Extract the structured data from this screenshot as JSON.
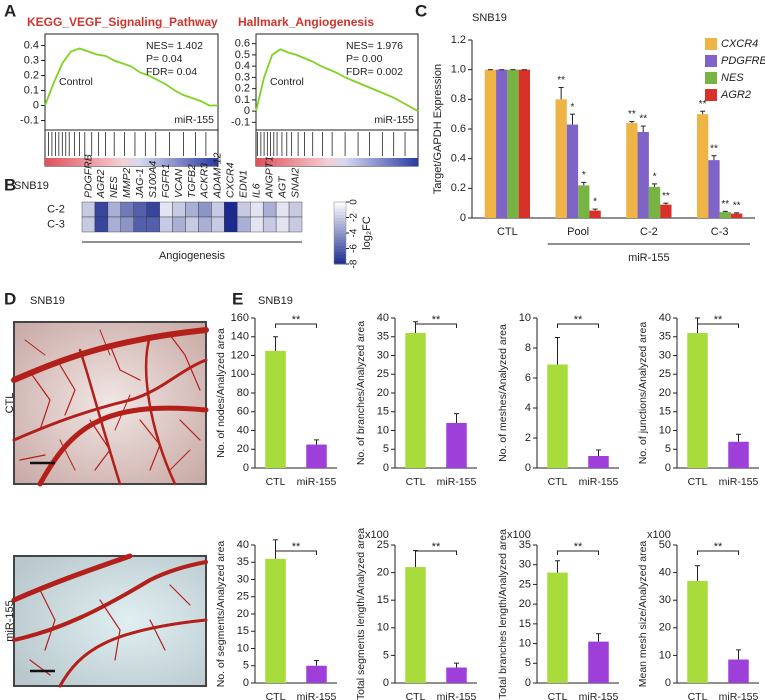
{
  "panel_labels": [
    "A",
    "B",
    "C",
    "D",
    "E"
  ],
  "images": {
    "title": "SNB19",
    "labels": [
      "CTL",
      "miR-155"
    ]
  },
  "chart_data": [
    {
      "type": "gsea",
      "title": "KEGG_VEGF_Signaling_Pathway",
      "annotations": [
        "NES= 1.402",
        "P= 0.04",
        "FDR= 0.04"
      ],
      "labels": [
        "Control",
        "miR-155"
      ],
      "color": "#7ed321",
      "x": [
        0,
        5,
        10,
        15,
        20,
        25,
        30,
        35,
        40,
        45,
        50,
        55,
        60,
        65,
        70,
        75,
        80,
        85,
        90,
        95,
        100
      ],
      "values": [
        0,
        0.15,
        0.28,
        0.36,
        0.38,
        0.36,
        0.34,
        0.33,
        0.3,
        0.28,
        0.26,
        0.22,
        0.2,
        0.17,
        0.14,
        0.1,
        0.07,
        0.05,
        0.03,
        0.0,
        0.0
      ],
      "hits": [
        2,
        4,
        6,
        8,
        10,
        12,
        14,
        17,
        20,
        23,
        27,
        31,
        35,
        40,
        46,
        52,
        58,
        64,
        72,
        80,
        87,
        93
      ],
      "ylim": [
        -0.15,
        0.45
      ],
      "yticks": [
        0.4,
        0.3,
        0.2,
        0.1,
        0,
        -0.1
      ]
    },
    {
      "type": "gsea",
      "title": "Hallmark_Angiogenesis",
      "annotations": [
        "NES= 1.976",
        "P= 0.00",
        "FDR= 0.002"
      ],
      "labels": [
        "Control",
        "miR-155"
      ],
      "color": "#7ed321",
      "x": [
        0,
        5,
        10,
        15,
        20,
        25,
        30,
        35,
        40,
        45,
        50,
        55,
        60,
        65,
        70,
        75,
        80,
        85,
        90,
        95,
        100
      ],
      "values": [
        0,
        0.3,
        0.5,
        0.55,
        0.52,
        0.5,
        0.47,
        0.44,
        0.4,
        0.37,
        0.34,
        0.3,
        0.27,
        0.24,
        0.21,
        0.18,
        0.15,
        0.12,
        0.08,
        0.04,
        0.0
      ],
      "hits": [
        1,
        3,
        5,
        7,
        9,
        11,
        13,
        16,
        19,
        22,
        26,
        30,
        35,
        41,
        47,
        55,
        63,
        70,
        78,
        85,
        92
      ],
      "ylim": [
        -0.15,
        0.65
      ],
      "yticks": [
        0.6,
        0.5,
        0.4,
        0.3,
        0.2,
        0.1,
        0,
        -0.1
      ]
    },
    {
      "type": "heatmap",
      "title": "SNB19",
      "categories": [
        "PDGFRB",
        "AGR2",
        "NES",
        "MMP2",
        "JAG-1",
        "S100A4",
        "FGFR1",
        "VCAN",
        "TGFB2",
        "ACKR3",
        "ADAM-12",
        "CXCR4",
        "EDN1",
        "IL6",
        "ANGPT1",
        "AGT",
        "SNAI2"
      ],
      "rows": [
        "C-2",
        "C-3"
      ],
      "values": [
        [
          -2,
          -7,
          -3,
          -5,
          -6,
          -7,
          -1,
          -2,
          -3,
          -4,
          -2,
          -8,
          -2,
          -1,
          -3,
          -1,
          -2
        ],
        [
          -2,
          -7,
          -3,
          -4,
          -6,
          -6,
          -2,
          -3,
          -2,
          -3,
          -2,
          -8,
          -3,
          -1,
          -2,
          -1,
          -2
        ]
      ],
      "colormap": [
        "#1b2a8f",
        "#ffffff"
      ],
      "zlim": [
        -8,
        0
      ],
      "zticks": [
        -8,
        -6,
        -4,
        -2,
        0
      ],
      "zlabel": "log₂FC",
      "xlabel": "Angiogenesis"
    },
    {
      "type": "bar",
      "title": "SNB19",
      "categories": [
        "CTL",
        "Pool",
        "C-2",
        "C-3"
      ],
      "xlabel": "miR-155",
      "ylabel": "Target/GAPDH Expression",
      "legend": "upper right",
      "ylim": [
        0,
        1.2
      ],
      "yticks": [
        0,
        0.2,
        0.4,
        0.6,
        0.8,
        {
          "value": 1,
          "label": "1.0"
        },
        1.2
      ],
      "series": [
        {
          "name": "CXCR4",
          "color": "#eeb446",
          "values": [
            1.0,
            0.8,
            0.64,
            0.7
          ],
          "errors": [
            0,
            0.08,
            0.01,
            0.02
          ],
          "significance": [
            null,
            "**",
            "**",
            "**"
          ]
        },
        {
          "name": "PDGFRB",
          "color": "#7f63c6",
          "values": [
            1.0,
            0.63,
            0.58,
            0.39
          ],
          "errors": [
            0,
            0.07,
            0.04,
            0.03
          ],
          "significance": [
            null,
            "*",
            "**",
            "**"
          ]
        },
        {
          "name": "NES",
          "color": "#78b443",
          "values": [
            1.0,
            0.22,
            0.21,
            0.04
          ],
          "errors": [
            0,
            0.02,
            0.02,
            0.005
          ],
          "significance": [
            null,
            "*",
            "*",
            "**"
          ]
        },
        {
          "name": "AGR2",
          "color": "#d7312a",
          "values": [
            1.0,
            0.05,
            0.09,
            0.03
          ],
          "errors": [
            0,
            0.01,
            0.01,
            0.005
          ],
          "significance": [
            null,
            "*",
            "**",
            "**"
          ]
        }
      ]
    },
    {
      "type": "bar",
      "title": "SNB19",
      "categories": [
        "CTL",
        "miR-155"
      ],
      "colors": [
        "#a8dc3c",
        "#9d3fd8"
      ],
      "ylabel": "No. of nodes/Analyzed area",
      "values": [
        125,
        25
      ],
      "errors": [
        15,
        5
      ],
      "significance": "**",
      "ylim": [
        0,
        160
      ],
      "yticks": [
        0,
        20,
        40,
        60,
        80,
        100,
        120,
        140,
        160
      ]
    },
    {
      "type": "bar",
      "categories": [
        "CTL",
        "miR-155"
      ],
      "colors": [
        "#a8dc3c",
        "#9d3fd8"
      ],
      "ylabel": "No. of branches/Analyzed area",
      "values": [
        36,
        12
      ],
      "errors": [
        3,
        2.5
      ],
      "significance": "**",
      "ylim": [
        0,
        40
      ],
      "yticks": [
        0,
        5,
        10,
        15,
        20,
        25,
        30,
        35,
        40
      ]
    },
    {
      "type": "bar",
      "categories": [
        "CTL",
        "miR-155"
      ],
      "colors": [
        "#a8dc3c",
        "#9d3fd8"
      ],
      "ylabel": "No. of meshes/Analyzed area",
      "values": [
        6.9,
        0.8
      ],
      "errors": [
        1.8,
        0.4
      ],
      "significance": "**",
      "ylim": [
        0,
        10
      ],
      "yticks": [
        0,
        2,
        4,
        6,
        8,
        10
      ]
    },
    {
      "type": "bar",
      "categories": [
        "CTL",
        "miR-155"
      ],
      "colors": [
        "#a8dc3c",
        "#9d3fd8"
      ],
      "ylabel": "No. of junctions/Analyzed area",
      "values": [
        36,
        7
      ],
      "errors": [
        4,
        2
      ],
      "significance": "**",
      "ylim": [
        0,
        40
      ],
      "yticks": [
        0,
        5,
        10,
        15,
        20,
        25,
        30,
        35,
        40
      ]
    },
    {
      "type": "bar",
      "categories": [
        "CTL",
        "miR-155"
      ],
      "colors": [
        "#a8dc3c",
        "#9d3fd8"
      ],
      "ylabel": "No. of segments/Analyzed area",
      "values": [
        36,
        5
      ],
      "errors": [
        5.5,
        1.5
      ],
      "significance": "**",
      "ylim": [
        0,
        40
      ],
      "yticks": [
        0,
        5,
        10,
        15,
        20,
        25,
        30,
        35,
        40
      ]
    },
    {
      "type": "bar",
      "categories": [
        "CTL",
        "miR-155"
      ],
      "colors": [
        "#a8dc3c",
        "#9d3fd8"
      ],
      "ylabel": "Total segments length/Analyzed area",
      "multiplier": "x100",
      "values": [
        21,
        2.8
      ],
      "errors": [
        3,
        0.8
      ],
      "significance": "**",
      "ylim": [
        0,
        25
      ],
      "yticks": [
        0,
        5,
        10,
        15,
        20,
        25
      ]
    },
    {
      "type": "bar",
      "categories": [
        "CTL",
        "miR-155"
      ],
      "colors": [
        "#a8dc3c",
        "#9d3fd8"
      ],
      "ylabel": "Total branches length/Analyzed area",
      "multiplier": "x100",
      "values": [
        28,
        10.5
      ],
      "errors": [
        3,
        2
      ],
      "significance": "**",
      "ylim": [
        0,
        35
      ],
      "yticks": [
        0,
        5,
        10,
        15,
        20,
        25,
        30,
        35
      ]
    },
    {
      "type": "bar",
      "categories": [
        "CTL",
        "miR-155"
      ],
      "colors": [
        "#a8dc3c",
        "#9d3fd8"
      ],
      "ylabel": "Mean mesh size/Analyzed area",
      "multiplier": "x100",
      "values": [
        37,
        8.5
      ],
      "errors": [
        5.5,
        3.5
      ],
      "significance": "**",
      "ylim": [
        0,
        50
      ],
      "yticks": [
        0,
        10,
        20,
        30,
        40,
        50
      ]
    }
  ]
}
